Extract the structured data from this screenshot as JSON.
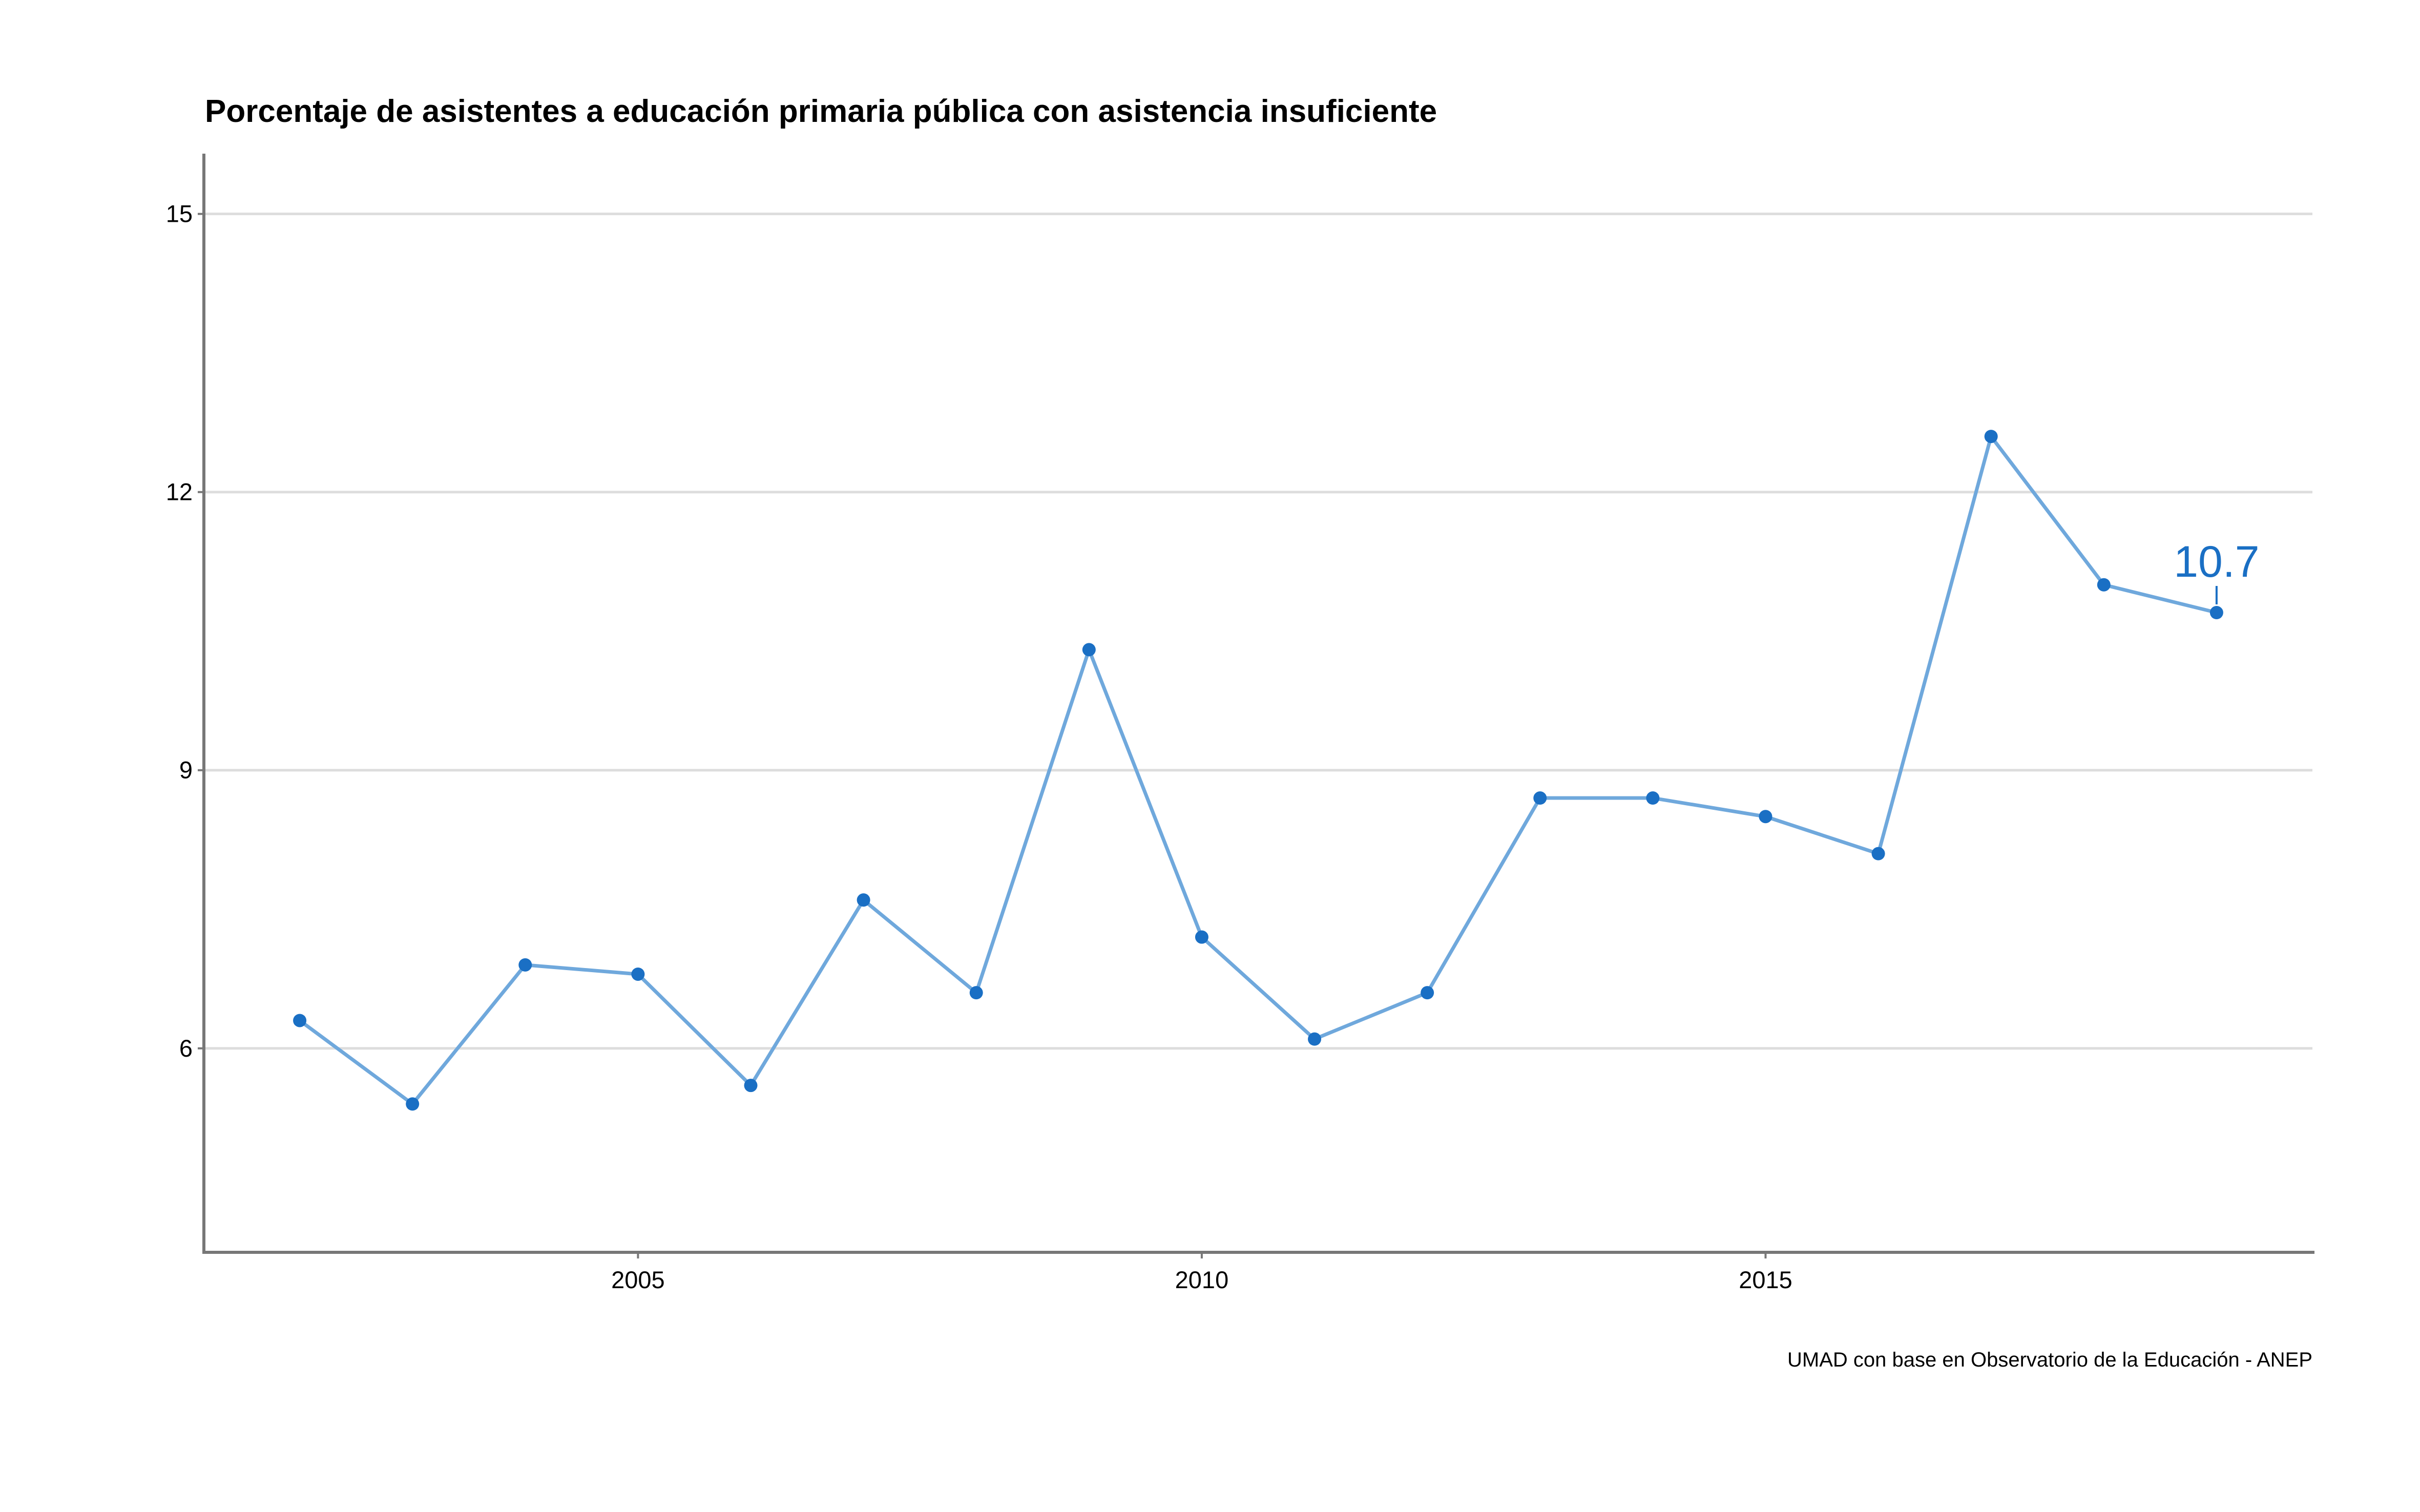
{
  "chart_data": {
    "type": "line",
    "title": "Porcentaje de asistentes a educación primaria pública con asistencia insuficiente",
    "xlabel": "",
    "ylabel": "",
    "caption": "UMAD con base en Observatorio de la Educación - ANEP",
    "x": [
      2002,
      2003,
      2004,
      2005,
      2006,
      2007,
      2008,
      2009,
      2010,
      2011,
      2012,
      2013,
      2014,
      2015,
      2016,
      2017,
      2018,
      2019
    ],
    "series": [
      {
        "values": [
          6.3,
          5.4,
          6.9,
          6.8,
          5.6,
          7.6,
          6.6,
          10.3,
          7.2,
          6.1,
          6.6,
          8.7,
          8.7,
          8.5,
          8.1,
          12.6,
          11.0,
          10.7
        ]
      }
    ],
    "xticks": [
      "2005",
      "2010",
      "2015"
    ],
    "yticks": [
      "6",
      "9",
      "12",
      "15"
    ],
    "xlim": [
      2001.15,
      2019.85
    ],
    "ylim": [
      3.8,
      15.65
    ],
    "grid": "horizontal",
    "annotation": {
      "label": "10.7",
      "x": 2019,
      "y": 10.7
    },
    "colors": {
      "line": "#6fa8dc",
      "point": "#1a6fc4",
      "annotation": "#1a6fc4",
      "grid": "#dddddd",
      "axis": "#777777"
    }
  }
}
